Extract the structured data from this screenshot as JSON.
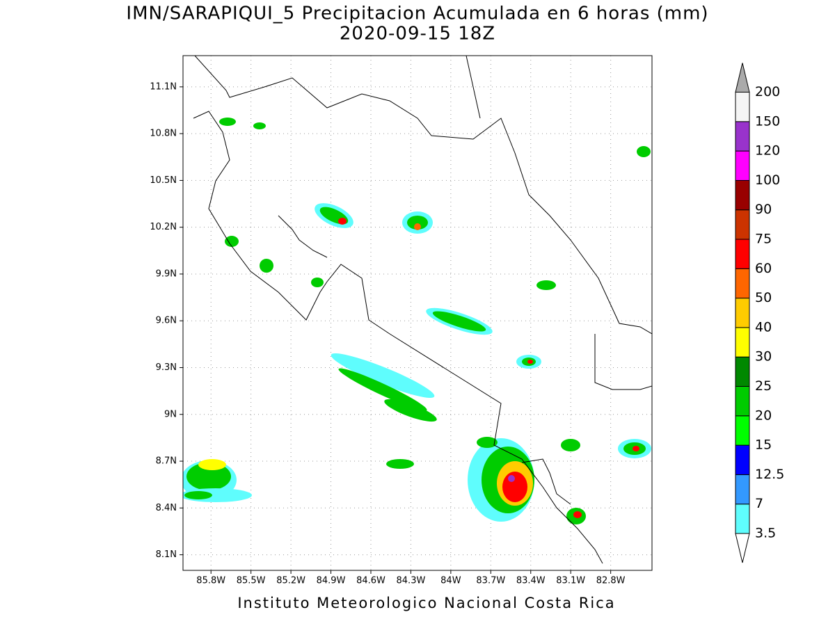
{
  "map": {
    "title": "IMN/SARAPIQUI_5 Precipitacion Acumulada en 6 horas (mm)",
    "subtitle": "2020-09-15 18Z",
    "footer": "Instituto Meteorologico Nacional Costa Rica",
    "xlim": [
      -86.01,
      -82.49
    ],
    "ylim": [
      8.0,
      11.3
    ],
    "xticks": [
      {
        "value": -85.8,
        "label": "85.8W"
      },
      {
        "value": -85.5,
        "label": "85.5W"
      },
      {
        "value": -85.2,
        "label": "85.2W"
      },
      {
        "value": -84.9,
        "label": "84.9W"
      },
      {
        "value": -84.6,
        "label": "84.6W"
      },
      {
        "value": -84.3,
        "label": "84.3W"
      },
      {
        "value": -84.0,
        "label": "84W"
      },
      {
        "value": -83.7,
        "label": "83.7W"
      },
      {
        "value": -83.4,
        "label": "83.4W"
      },
      {
        "value": -83.1,
        "label": "83.1W"
      },
      {
        "value": -82.8,
        "label": "82.8W"
      }
    ],
    "yticks": [
      {
        "value": 8.1,
        "label": "8.1N"
      },
      {
        "value": 8.4,
        "label": "8.4N"
      },
      {
        "value": 8.7,
        "label": "8.7N"
      },
      {
        "value": 9.0,
        "label": "9N"
      },
      {
        "value": 9.3,
        "label": "9.3N"
      },
      {
        "value": 9.6,
        "label": "9.6N"
      },
      {
        "value": 9.9,
        "label": "9.9N"
      },
      {
        "value": 10.2,
        "label": "10.2N"
      },
      {
        "value": 10.5,
        "label": "10.5N"
      },
      {
        "value": 10.8,
        "label": "10.8N"
      },
      {
        "value": 11.1,
        "label": "11.1N"
      }
    ],
    "grid": true,
    "colorbar": {
      "levels": [
        3.5,
        7,
        12.5,
        15,
        20,
        25,
        30,
        40,
        50,
        60,
        75,
        90,
        100,
        120,
        150,
        200
      ],
      "colors": [
        "#5ffdfd",
        "#3399ff",
        "#0000ff",
        "#00ff00",
        "#00cc00",
        "#008800",
        "#ffff00",
        "#ffcc00",
        "#ff6600",
        "#ff0000",
        "#cc3300",
        "#990000",
        "#ff00ff",
        "#9933cc",
        "#f5f5f5"
      ],
      "under_color": "#ffffff",
      "over_color": "#aaaaaa"
    }
  }
}
